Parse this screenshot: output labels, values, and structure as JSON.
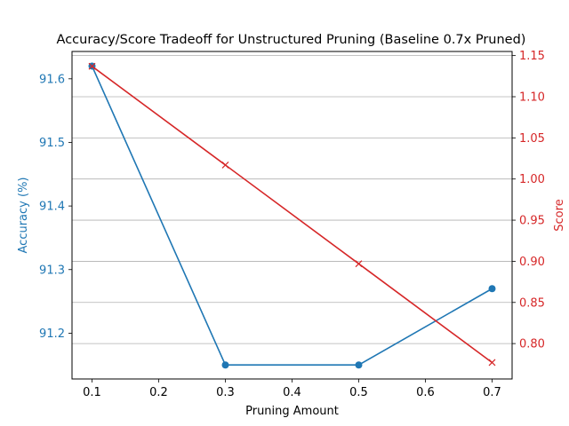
{
  "chart_data": {
    "type": "line",
    "title": "Accuracy/Score Tradeoff for Unstructured Pruning (Baseline 0.7x Pruned)",
    "xlabel": "Pruning Amount",
    "xlim": [
      0.07,
      0.73
    ],
    "x_ticks": [
      0.1,
      0.2,
      0.3,
      0.4,
      0.5,
      0.6,
      0.7
    ],
    "x_tick_labels": [
      "0.1",
      "0.2",
      "0.3",
      "0.4",
      "0.5",
      "0.6",
      "0.7"
    ],
    "grid": "horizontal (right axis)",
    "left_axis": {
      "label": "Accuracy (%)",
      "color": "#1f77b4",
      "ylim": [
        91.128,
        91.643
      ],
      "ticks": [
        91.2,
        91.3,
        91.4,
        91.5,
        91.6
      ],
      "tick_labels": [
        "91.2",
        "91.3",
        "91.4",
        "91.5",
        "91.6"
      ]
    },
    "right_axis": {
      "label": "Score",
      "color": "#d62728",
      "ylim": [
        0.757,
        1.155
      ],
      "ticks": [
        0.8,
        0.85,
        0.9,
        0.95,
        1.0,
        1.05,
        1.1,
        1.15
      ],
      "tick_labels": [
        "0.80",
        "0.85",
        "0.90",
        "0.95",
        "1.00",
        "1.05",
        "1.10",
        "1.15"
      ]
    },
    "series": [
      {
        "axis": "left",
        "color": "#1f77b4",
        "marker": "circle",
        "x": [
          0.1,
          0.3,
          0.5,
          0.7
        ],
        "values": [
          91.62,
          91.15,
          91.15,
          91.27
        ]
      },
      {
        "axis": "right",
        "color": "#d62728",
        "marker": "x",
        "x": [
          0.1,
          0.3,
          0.5,
          0.7
        ],
        "values": [
          1.137,
          1.017,
          0.897,
          0.777
        ]
      }
    ]
  }
}
